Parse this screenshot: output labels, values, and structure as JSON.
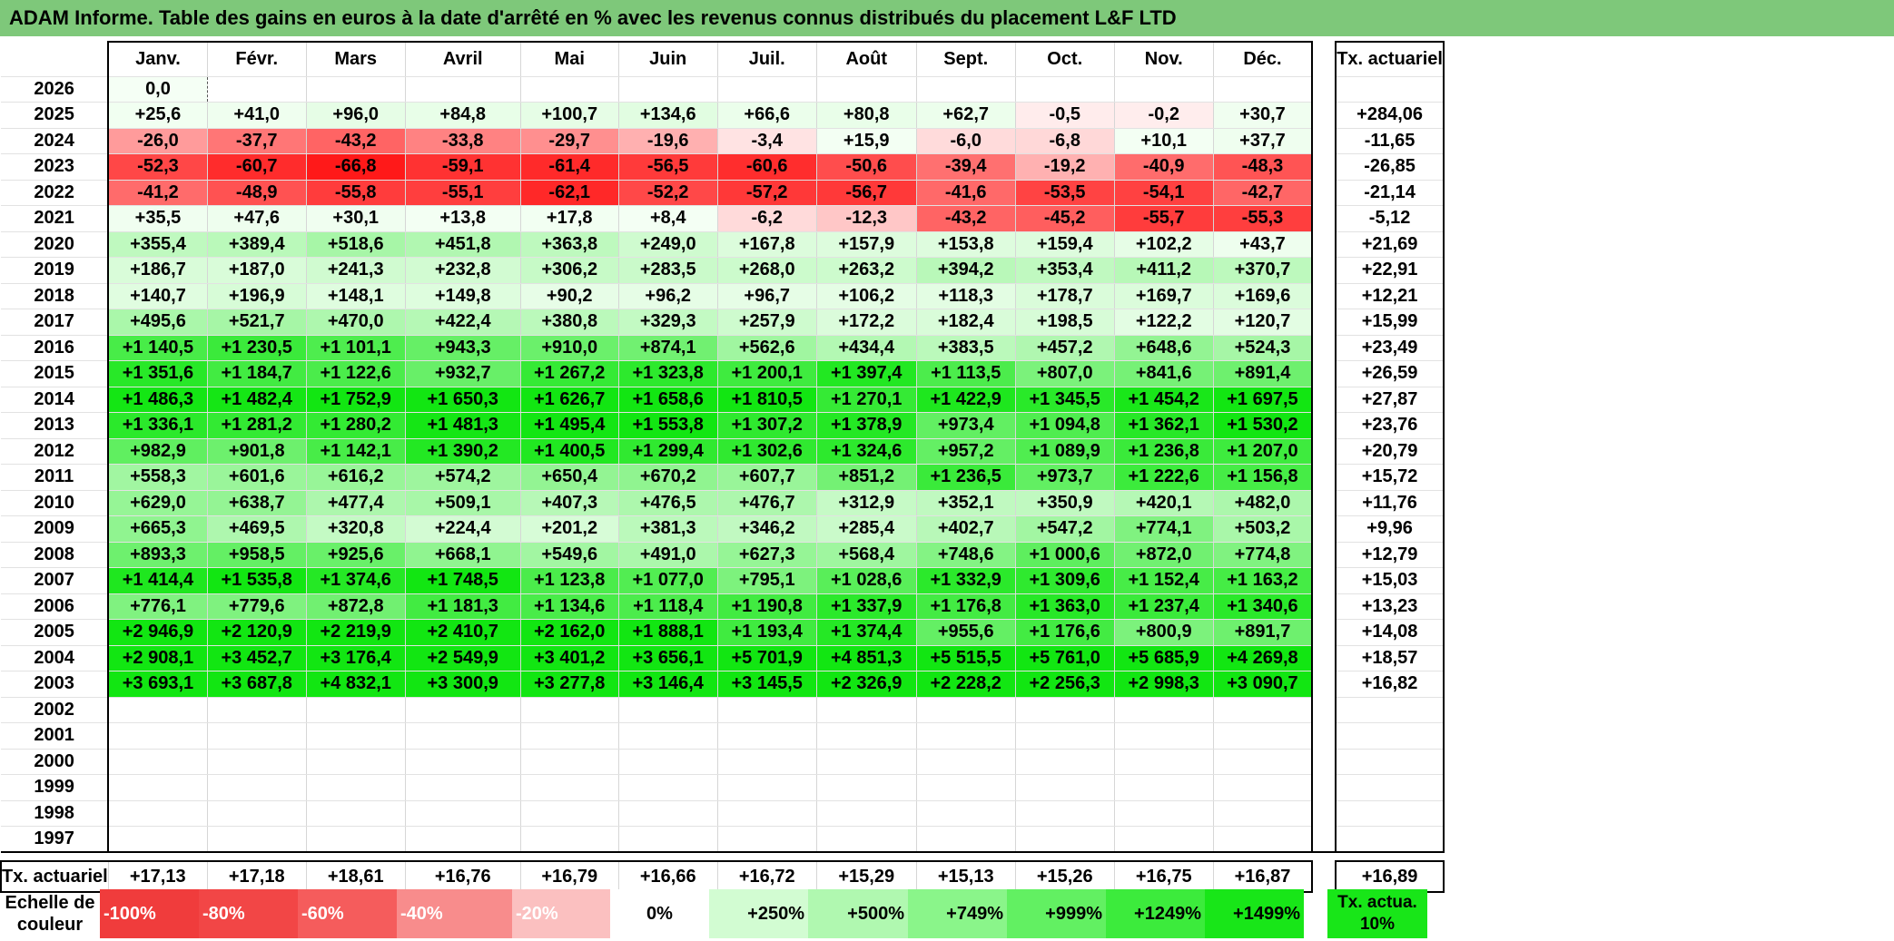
{
  "title": "ADAM Informe. Table des gains en euros à la date d'arrêté en % avec les revenus connus distribués du placement L&F LTD",
  "months": [
    "Janv.",
    "Févr.",
    "Mars",
    "Avril",
    "Mai",
    "Juin",
    "Juil.",
    "Août",
    "Sept.",
    "Oct.",
    "Nov.",
    "Déc."
  ],
  "total_header": "Tx. actuariel",
  "rows": [
    {
      "year": "2026",
      "values": [
        "0,0",
        "",
        "",
        "",
        "",
        "",
        "",
        "",
        "",
        "",
        "",
        ""
      ],
      "total": ""
    },
    {
      "year": "2025",
      "values": [
        "+25,6",
        "+41,0",
        "+96,0",
        "+84,8",
        "+100,7",
        "+134,6",
        "+66,6",
        "+80,8",
        "+62,7",
        "-0,5",
        "-0,2",
        "+30,7"
      ],
      "total": "+284,06"
    },
    {
      "year": "2024",
      "values": [
        "-26,0",
        "-37,7",
        "-43,2",
        "-33,8",
        "-29,7",
        "-19,6",
        "-3,4",
        "+15,9",
        "-6,0",
        "-6,8",
        "+10,1",
        "+37,7"
      ],
      "total": "-11,65"
    },
    {
      "year": "2023",
      "values": [
        "-52,3",
        "-60,7",
        "-66,8",
        "-59,1",
        "-61,4",
        "-56,5",
        "-60,6",
        "-50,6",
        "-39,4",
        "-19,2",
        "-40,9",
        "-48,3"
      ],
      "total": "-26,85"
    },
    {
      "year": "2022",
      "values": [
        "-41,2",
        "-48,9",
        "-55,8",
        "-55,1",
        "-62,1",
        "-52,2",
        "-57,2",
        "-56,7",
        "-41,6",
        "-53,5",
        "-54,1",
        "-42,7"
      ],
      "total": "-21,14"
    },
    {
      "year": "2021",
      "values": [
        "+35,5",
        "+47,6",
        "+30,1",
        "+13,8",
        "+17,8",
        "+8,4",
        "-6,2",
        "-12,3",
        "-43,2",
        "-45,2",
        "-55,7",
        "-55,3"
      ],
      "total": "-5,12"
    },
    {
      "year": "2020",
      "values": [
        "+355,4",
        "+389,4",
        "+518,6",
        "+451,8",
        "+363,8",
        "+249,0",
        "+167,8",
        "+157,9",
        "+153,8",
        "+159,4",
        "+102,2",
        "+43,7"
      ],
      "total": "+21,69"
    },
    {
      "year": "2019",
      "values": [
        "+186,7",
        "+187,0",
        "+241,3",
        "+232,8",
        "+306,2",
        "+283,5",
        "+268,0",
        "+263,2",
        "+394,2",
        "+353,4",
        "+411,2",
        "+370,7"
      ],
      "total": "+22,91"
    },
    {
      "year": "2018",
      "values": [
        "+140,7",
        "+196,9",
        "+148,1",
        "+149,8",
        "+90,2",
        "+96,2",
        "+96,7",
        "+106,2",
        "+118,3",
        "+178,7",
        "+169,7",
        "+169,6"
      ],
      "total": "+12,21"
    },
    {
      "year": "2017",
      "values": [
        "+495,6",
        "+521,7",
        "+470,0",
        "+422,4",
        "+380,8",
        "+329,3",
        "+257,9",
        "+172,2",
        "+182,4",
        "+198,5",
        "+122,2",
        "+120,7"
      ],
      "total": "+15,99"
    },
    {
      "year": "2016",
      "values": [
        "+1 140,5",
        "+1 230,5",
        "+1 101,1",
        "+943,3",
        "+910,0",
        "+874,1",
        "+562,6",
        "+434,4",
        "+383,5",
        "+457,2",
        "+648,6",
        "+524,3"
      ],
      "total": "+23,49"
    },
    {
      "year": "2015",
      "values": [
        "+1 351,6",
        "+1 184,7",
        "+1 122,6",
        "+932,7",
        "+1 267,2",
        "+1 323,8",
        "+1 200,1",
        "+1 397,4",
        "+1 113,5",
        "+807,0",
        "+841,6",
        "+891,4"
      ],
      "total": "+26,59"
    },
    {
      "year": "2014",
      "values": [
        "+1 486,3",
        "+1 482,4",
        "+1 752,9",
        "+1 650,3",
        "+1 626,7",
        "+1 658,6",
        "+1 810,5",
        "+1 270,1",
        "+1 422,9",
        "+1 345,5",
        "+1 454,2",
        "+1 697,5"
      ],
      "total": "+27,87"
    },
    {
      "year": "2013",
      "values": [
        "+1 336,1",
        "+1 281,2",
        "+1 280,2",
        "+1 481,3",
        "+1 495,4",
        "+1 553,8",
        "+1 307,2",
        "+1 378,9",
        "+973,4",
        "+1 094,8",
        "+1 362,1",
        "+1 530,2"
      ],
      "total": "+23,76"
    },
    {
      "year": "2012",
      "values": [
        "+982,9",
        "+901,8",
        "+1 142,1",
        "+1 390,2",
        "+1 400,5",
        "+1 299,4",
        "+1 302,6",
        "+1 324,6",
        "+957,2",
        "+1 089,9",
        "+1 236,8",
        "+1 207,0"
      ],
      "total": "+20,79"
    },
    {
      "year": "2011",
      "values": [
        "+558,3",
        "+601,6",
        "+616,2",
        "+574,2",
        "+650,4",
        "+670,2",
        "+607,7",
        "+851,2",
        "+1 236,5",
        "+973,7",
        "+1 222,6",
        "+1 156,8"
      ],
      "total": "+15,72"
    },
    {
      "year": "2010",
      "values": [
        "+629,0",
        "+638,7",
        "+477,4",
        "+509,1",
        "+407,3",
        "+476,5",
        "+476,7",
        "+312,9",
        "+352,1",
        "+350,9",
        "+420,1",
        "+482,0"
      ],
      "total": "+11,76"
    },
    {
      "year": "2009",
      "values": [
        "+665,3",
        "+469,5",
        "+320,8",
        "+224,4",
        "+201,2",
        "+381,3",
        "+346,2",
        "+285,4",
        "+402,7",
        "+547,2",
        "+774,1",
        "+503,2"
      ],
      "total": "+9,96"
    },
    {
      "year": "2008",
      "values": [
        "+893,3",
        "+958,5",
        "+925,6",
        "+668,1",
        "+549,6",
        "+491,0",
        "+627,3",
        "+568,4",
        "+748,6",
        "+1 000,6",
        "+872,0",
        "+774,8"
      ],
      "total": "+12,79"
    },
    {
      "year": "2007",
      "values": [
        "+1 414,4",
        "+1 535,8",
        "+1 374,6",
        "+1 748,5",
        "+1 123,8",
        "+1 077,0",
        "+795,1",
        "+1 028,6",
        "+1 332,9",
        "+1 309,6",
        "+1 152,4",
        "+1 163,2"
      ],
      "total": "+15,03"
    },
    {
      "year": "2006",
      "values": [
        "+776,1",
        "+779,6",
        "+872,8",
        "+1 181,3",
        "+1 134,6",
        "+1 118,4",
        "+1 190,8",
        "+1 337,9",
        "+1 176,8",
        "+1 363,0",
        "+1 237,4",
        "+1 340,6"
      ],
      "total": "+13,23"
    },
    {
      "year": "2005",
      "values": [
        "+2 946,9",
        "+2 120,9",
        "+2 219,9",
        "+2 410,7",
        "+2 162,0",
        "+1 888,1",
        "+1 193,4",
        "+1 374,4",
        "+955,6",
        "+1 176,6",
        "+800,9",
        "+891,7"
      ],
      "total": "+14,08"
    },
    {
      "year": "2004",
      "values": [
        "+2 908,1",
        "+3 452,7",
        "+3 176,4",
        "+2 549,9",
        "+3 401,2",
        "+3 656,1",
        "+5 701,9",
        "+4 851,3",
        "+5 515,5",
        "+5 761,0",
        "+5 685,9",
        "+4 269,8"
      ],
      "total": "+18,57"
    },
    {
      "year": "2003",
      "values": [
        "+3 693,1",
        "+3 687,8",
        "+4 832,1",
        "+3 300,9",
        "+3 277,8",
        "+3 146,4",
        "+3 145,5",
        "+2 326,9",
        "+2 228,2",
        "+2 256,3",
        "+2 998,3",
        "+3 090,7"
      ],
      "total": "+16,82"
    },
    {
      "year": "2002",
      "values": [
        "",
        "",
        "",
        "",
        "",
        "",
        "",
        "",
        "",
        "",
        "",
        ""
      ],
      "total": ""
    },
    {
      "year": "2001",
      "values": [
        "",
        "",
        "",
        "",
        "",
        "",
        "",
        "",
        "",
        "",
        "",
        ""
      ],
      "total": ""
    },
    {
      "year": "2000",
      "values": [
        "",
        "",
        "",
        "",
        "",
        "",
        "",
        "",
        "",
        "",
        "",
        ""
      ],
      "total": ""
    },
    {
      "year": "1999",
      "values": [
        "",
        "",
        "",
        "",
        "",
        "",
        "",
        "",
        "",
        "",
        "",
        ""
      ],
      "total": ""
    },
    {
      "year": "1998",
      "values": [
        "",
        "",
        "",
        "",
        "",
        "",
        "",
        "",
        "",
        "",
        "",
        ""
      ],
      "total": ""
    },
    {
      "year": "1997",
      "values": [
        "",
        "",
        "",
        "",
        "",
        "",
        "",
        "",
        "",
        "",
        "",
        ""
      ],
      "total": ""
    }
  ],
  "footer": {
    "label": "Tx. actuariel",
    "values": [
      "+17,13",
      "+17,18",
      "+18,61",
      "+16,76",
      "+16,79",
      "+16,66",
      "+16,72",
      "+15,29",
      "+15,13",
      "+15,26",
      "+16,75",
      "+16,87"
    ],
    "total": "+16,89"
  },
  "scale": {
    "label": "Echelle de couleur",
    "items": [
      {
        "text": "-100%",
        "color": "#f03c3c"
      },
      {
        "text": "-80%",
        "color": "#f24646"
      },
      {
        "text": "-60%",
        "color": "#f55c5c"
      },
      {
        "text": "-40%",
        "color": "#f88c8c"
      },
      {
        "text": "-20%",
        "color": "#fbc0c0"
      },
      {
        "text": "0%",
        "color": "#ffffff"
      },
      {
        "text": "+250%",
        "color": "#d2fcd2"
      },
      {
        "text": "+500%",
        "color": "#b0f8b0"
      },
      {
        "text": "+749%",
        "color": "#8af58a"
      },
      {
        "text": "+999%",
        "color": "#62f062"
      },
      {
        "text": "+1249%",
        "color": "#3ceb3c"
      },
      {
        "text": "+1499%",
        "color": "#18e618"
      }
    ],
    "tx_label": "Tx. actua. 10%",
    "tx_color": "#18e618"
  }
}
